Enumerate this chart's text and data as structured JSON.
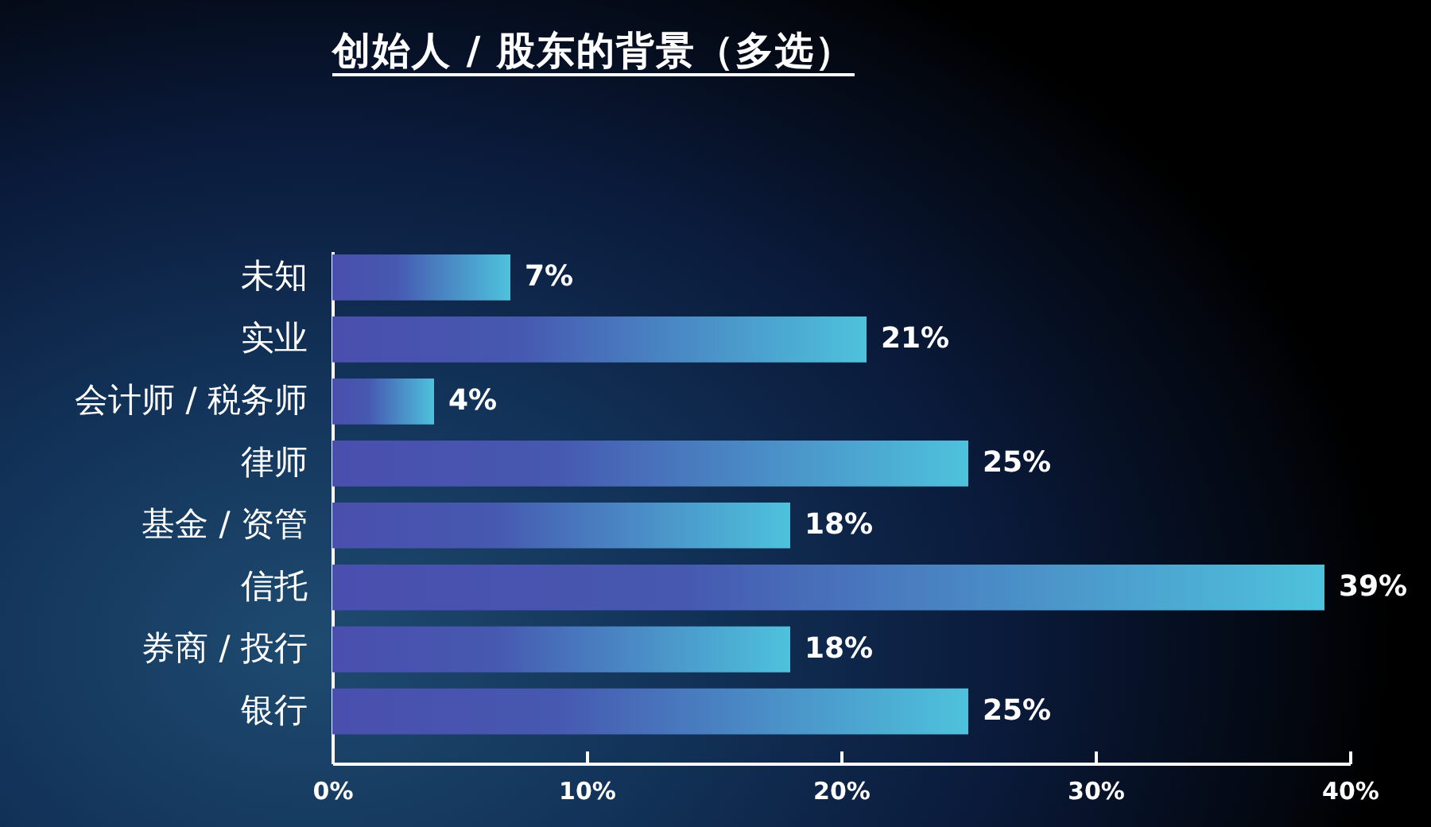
{
  "chart_data": {
    "type": "bar",
    "orientation": "horizontal",
    "title": "创始人 / 股东的背景（多选）",
    "categories": [
      "未知",
      "实业",
      "会计师 / 税务师",
      "律师",
      "基金 / 资管",
      "信托",
      "券商 / 投行",
      "银行"
    ],
    "values": [
      7,
      21,
      4,
      25,
      18,
      39,
      18,
      25
    ],
    "value_labels": [
      "7%",
      "21%",
      "4%",
      "25%",
      "18%",
      "39%",
      "18%",
      "25%"
    ],
    "color": "#4ec2dc",
    "xlim": [
      0,
      40
    ],
    "xticks": [
      {
        "value": 0,
        "label": "0%"
      },
      {
        "value": 10,
        "label": "10%"
      },
      {
        "value": 20,
        "label": "20%"
      },
      {
        "value": 30,
        "label": "30%"
      },
      {
        "value": 40,
        "label": "40%"
      }
    ],
    "grid": false
  }
}
